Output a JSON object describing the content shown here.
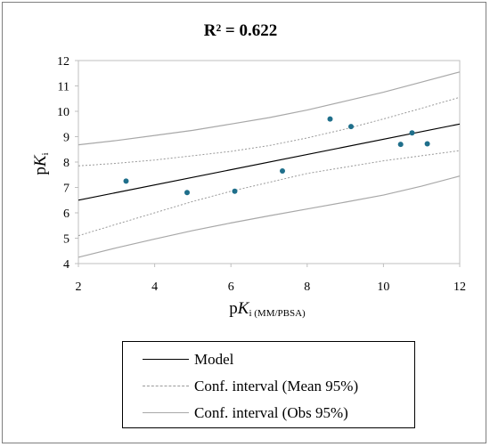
{
  "chart_data": {
    "type": "scatter",
    "title": "R² = 0.622",
    "xlabel_main": "pK",
    "xlabel_sub": "i (MM/PBSA)",
    "ylabel_main": "pK",
    "ylabel_sub": "i",
    "xlim": [
      2,
      12
    ],
    "ylim": [
      4,
      12
    ],
    "xticks": [
      "2",
      "4",
      "6",
      "8",
      "10",
      "12"
    ],
    "yticks": [
      "4",
      "5",
      "6",
      "7",
      "8",
      "9",
      "10",
      "11",
      "12"
    ],
    "grid": false,
    "points": {
      "color": "#1f6f8b",
      "x": [
        3.25,
        4.85,
        6.1,
        7.35,
        8.6,
        9.15,
        10.45,
        10.75,
        11.15
      ],
      "y": [
        7.25,
        6.8,
        6.85,
        7.65,
        9.7,
        9.4,
        8.7,
        9.15,
        8.72
      ]
    },
    "model": {
      "name": "Model",
      "x": [
        2,
        12
      ],
      "y": [
        6.5,
        9.5
      ],
      "color": "#000000"
    },
    "ci_mean": {
      "name": "Conf. interval (Mean 95%)",
      "color": "#9a9a9a",
      "x": [
        2,
        3,
        4,
        5,
        6,
        7,
        8,
        9,
        10,
        11,
        12
      ],
      "upper": [
        7.85,
        7.95,
        8.08,
        8.25,
        8.42,
        8.65,
        8.95,
        9.3,
        9.7,
        10.12,
        10.55
      ],
      "lower": [
        5.1,
        5.55,
        6.0,
        6.45,
        6.85,
        7.2,
        7.55,
        7.8,
        8.05,
        8.25,
        8.45
      ]
    },
    "ci_obs": {
      "name": "Conf. interval (Obs 95%)",
      "color": "#a8a8a8",
      "x": [
        2,
        3,
        4,
        5,
        6,
        7,
        8,
        9,
        10,
        11,
        12
      ],
      "upper": [
        8.68,
        8.85,
        9.05,
        9.25,
        9.5,
        9.75,
        10.05,
        10.4,
        10.75,
        11.15,
        11.55
      ],
      "lower": [
        4.25,
        4.62,
        4.97,
        5.3,
        5.6,
        5.88,
        6.15,
        6.42,
        6.7,
        7.05,
        7.45
      ]
    },
    "legend": {
      "placement": "bottom",
      "entries": [
        "Model",
        "Conf. interval (Mean 95%)",
        "Conf. interval (Obs 95%)"
      ]
    }
  }
}
